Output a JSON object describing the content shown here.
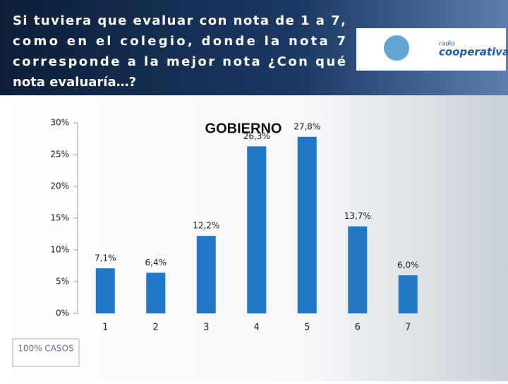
{
  "header": {
    "title_lines": [
      "Si tuviera que evaluar con nota de 1 a 7,",
      "como en el colegio, donde la nota 7",
      "corresponde a la mejor nota ¿Con qué",
      "nota evaluaría…?"
    ],
    "logo": {
      "brand_top": "radio",
      "brand": "cooperativa"
    }
  },
  "chart_data": {
    "type": "bar",
    "title": "GOBIERNO",
    "categories": [
      "1",
      "2",
      "3",
      "4",
      "5",
      "6",
      "7"
    ],
    "values": [
      7.1,
      6.4,
      12.2,
      26.3,
      27.8,
      13.7,
      6.0
    ],
    "value_labels": [
      "7,1%",
      "6,4%",
      "12,2%",
      "26,3%",
      "27,8%",
      "13,7%",
      "6,0%"
    ],
    "color": "#1f78c8",
    "ylim": [
      0,
      30
    ],
    "yticks": [
      {
        "value": 0,
        "label": "0%"
      },
      {
        "value": 5,
        "label": "5%"
      },
      {
        "value": 10,
        "label": "10%"
      },
      {
        "value": 15,
        "label": "15%"
      },
      {
        "value": 20,
        "label": "20%"
      },
      {
        "value": 25,
        "label": "25%"
      },
      {
        "value": 30,
        "label": "30%"
      }
    ]
  },
  "footer": {
    "note": "100% CASOS"
  }
}
